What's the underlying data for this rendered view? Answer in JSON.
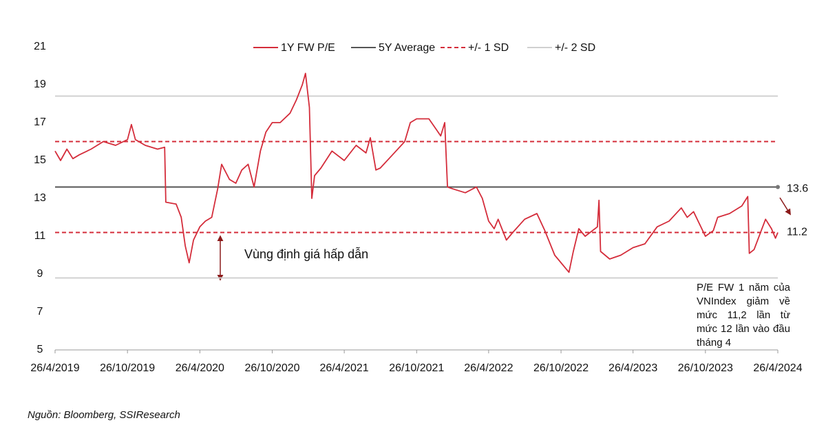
{
  "chart_data": {
    "type": "line",
    "x": [
      "26/4/2019",
      "10/5/2019",
      "26/5/2019",
      "10/6/2019",
      "26/6/2019",
      "26/7/2019",
      "26/8/2019",
      "26/9/2019",
      "26/10/2019",
      "5/11/2019",
      "15/11/2019",
      "10/12/2019",
      "10/1/2020",
      "28/1/2020",
      "31/1/2020",
      "26/2/2020",
      "10/3/2020",
      "20/3/2020",
      "30/3/2020",
      "10/4/2020",
      "26/4/2020",
      "10/5/2020",
      "26/5/2020",
      "10/6/2020",
      "20/6/2020",
      "10/7/2020",
      "26/7/2020",
      "10/8/2020",
      "26/8/2020",
      "10/9/2020",
      "26/9/2020",
      "10/10/2020",
      "26/10/2020",
      "15/11/2020",
      "10/12/2020",
      "26/12/2020",
      "10/1/2021",
      "18/1/2021",
      "28/1/2021",
      "3/2/2021",
      "10/2/2021",
      "26/2/2021",
      "26/3/2021",
      "26/4/2021",
      "26/5/2021",
      "20/6/2021",
      "1/7/2021",
      "15/7/2021",
      "26/7/2021",
      "26/8/2021",
      "26/9/2021",
      "10/10/2021",
      "26/10/2021",
      "26/11/2021",
      "26/12/2021",
      "5/1/2022",
      "12/1/2022",
      "26/1/2022",
      "26/2/2022",
      "26/3/2022",
      "10/4/2022",
      "26/4/2022",
      "10/5/2022",
      "20/5/2022",
      "10/6/2022",
      "26/6/2022",
      "26/7/2022",
      "26/8/2022",
      "15/9/2022",
      "10/10/2022",
      "26/10/2022",
      "15/11/2022",
      "26/11/2022",
      "10/12/2022",
      "26/12/2022",
      "26/1/2023",
      "30/1/2023",
      "3/2/2023",
      "26/2/2023",
      "26/3/2023",
      "26/4/2023",
      "26/5/2023",
      "26/6/2023",
      "26/7/2023",
      "26/8/2023",
      "10/9/2023",
      "26/9/2023",
      "26/10/2023",
      "15/11/2023",
      "26/11/2023",
      "26/12/2023",
      "26/1/2024",
      "10/2/2024",
      "14/2/2024",
      "26/2/2024",
      "15/3/2024",
      "26/3/2024",
      "10/4/2024",
      "20/4/2024",
      "26/4/2024"
    ],
    "series": [
      {
        "name": "1Y FW P/E",
        "color": "#d42c3a",
        "values": [
          15.5,
          15.0,
          15.6,
          15.1,
          15.3,
          15.6,
          16.0,
          15.8,
          16.1,
          16.9,
          16.1,
          15.8,
          15.6,
          15.7,
          12.8,
          12.7,
          12.0,
          10.5,
          9.6,
          10.8,
          11.5,
          11.8,
          12.0,
          13.5,
          14.8,
          14.0,
          13.8,
          14.5,
          14.8,
          13.6,
          15.5,
          16.5,
          17.0,
          17.0,
          17.5,
          18.2,
          19.0,
          19.6,
          17.8,
          13.0,
          14.2,
          14.6,
          15.5,
          15.0,
          15.8,
          15.4,
          16.2,
          14.5,
          14.6,
          15.3,
          16.0,
          17.0,
          17.2,
          17.2,
          16.3,
          17.0,
          13.6,
          13.5,
          13.3,
          13.6,
          13.0,
          11.8,
          11.4,
          11.9,
          10.8,
          11.2,
          11.9,
          12.2,
          11.3,
          10.0,
          9.6,
          9.1,
          10.2,
          11.4,
          11.0,
          11.5,
          12.9,
          10.2,
          9.8,
          10.0,
          10.4,
          10.6,
          11.5,
          11.8,
          12.5,
          12.0,
          12.3,
          11.0,
          11.3,
          12.0,
          12.2,
          12.6,
          13.1,
          10.1,
          10.3,
          11.3,
          11.9,
          11.4,
          10.9,
          11.2
        ]
      }
    ],
    "hlines": [
      {
        "name": "5Y Average",
        "color": "#555555",
        "style": "solid",
        "values": [
          13.6
        ]
      },
      {
        "name": "+/- 1 SD",
        "color": "#d42c3a",
        "style": "dashed",
        "values": [
          16.0,
          11.2
        ]
      },
      {
        "name": "+/- 2 SD",
        "color": "#d0d0d0",
        "style": "solid",
        "values": [
          18.4,
          8.8
        ]
      }
    ],
    "xlim": [
      "26/4/2019",
      "26/4/2024"
    ],
    "xticks": [
      "26/4/2019",
      "26/10/2019",
      "26/4/2020",
      "26/10/2020",
      "26/4/2021",
      "26/10/2021",
      "26/4/2022",
      "26/10/2022",
      "26/4/2023",
      "26/10/2023",
      "26/4/2024"
    ],
    "ylim": [
      5,
      21
    ],
    "yticks": [
      5,
      7,
      9,
      11,
      13,
      15,
      17,
      19,
      21
    ],
    "annotations": [
      "Vùng định giá hấp dẫn",
      "P/E FW 1 năm của VNIndex giảm về mức 11,2 lần từ mức 12 lần vào đầu tháng 4"
    ],
    "source": "Nguồn: Bloomberg, SSIResearch"
  }
}
